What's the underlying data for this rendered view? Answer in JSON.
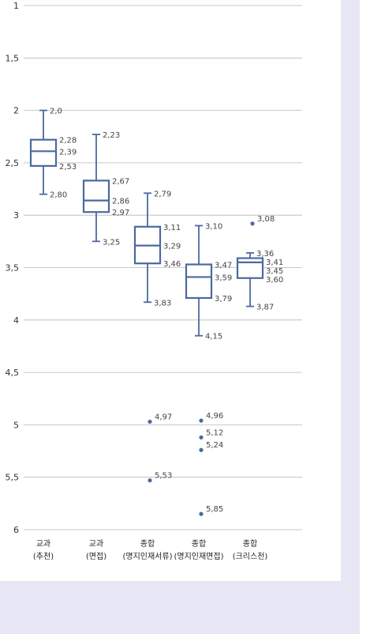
{
  "chart_data": {
    "type": "boxplot",
    "title": "",
    "xlabel": "",
    "ylabel": "",
    "y_reversed": true,
    "ylim": [
      1,
      6
    ],
    "yticks": [
      "1",
      "1,5",
      "2",
      "2,5",
      "3",
      "3,5",
      "4",
      "4,5",
      "5",
      "5,5",
      "6"
    ],
    "grid": "horizontal",
    "box_color": "#4a6a9e",
    "categories": [
      {
        "line1": "교과",
        "line2": "(추천)"
      },
      {
        "line1": "교과",
        "line2": "(면접)"
      },
      {
        "line1": "종합",
        "line2": "(명지인재서류)"
      },
      {
        "line1": "종합",
        "line2": "(명지인재면접)"
      },
      {
        "line1": "종합",
        "line2": "(크리스천)"
      }
    ],
    "boxes": [
      {
        "low": 2.0,
        "q1": 2.28,
        "median": 2.39,
        "q3": 2.53,
        "high": 2.8,
        "labels": [
          "2,0",
          "2,28",
          "2,39",
          "2,53",
          "2,80"
        ],
        "outliers": []
      },
      {
        "low": 2.23,
        "q1": 2.67,
        "median": 2.86,
        "q3": 2.97,
        "high": 3.25,
        "labels": [
          "2,23",
          "2,67",
          "2,86",
          "2,97",
          "3,25"
        ],
        "outliers": []
      },
      {
        "low": 2.79,
        "q1": 3.11,
        "median": 3.29,
        "q3": 3.46,
        "high": 3.83,
        "labels": [
          "2,79",
          "3,11",
          "3,29",
          "3,46",
          "3,83"
        ],
        "outliers": [
          {
            "value": 4.97,
            "label": "4,97"
          },
          {
            "value": 5.53,
            "label": "5,53"
          }
        ]
      },
      {
        "low": 3.1,
        "q1": 3.47,
        "median": 3.59,
        "q3": 3.79,
        "high": 4.15,
        "labels": [
          "3,10",
          "3,47",
          "3,59",
          "3,79",
          "4,15"
        ],
        "outliers": [
          {
            "value": 4.96,
            "label": "4,96"
          },
          {
            "value": 5.12,
            "label": "5,12"
          },
          {
            "value": 5.24,
            "label": "5,24"
          },
          {
            "value": 5.85,
            "label": "5,85"
          }
        ]
      },
      {
        "low": 3.36,
        "q1": 3.41,
        "median": 3.45,
        "q3": 3.6,
        "high": 3.87,
        "labels": [
          "3,36",
          "3,41",
          "3,45",
          "3,60",
          "3,87"
        ],
        "outliers": [
          {
            "value": 3.08,
            "label": "3,08"
          }
        ]
      }
    ]
  }
}
